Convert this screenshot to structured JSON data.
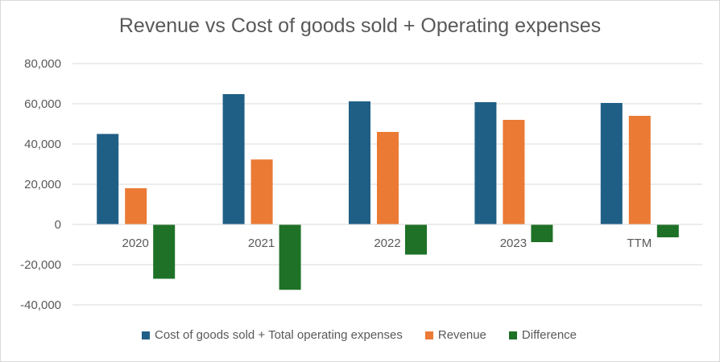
{
  "chart_data": {
    "type": "bar",
    "title": "Revenue vs Cost of goods sold + Operating expenses",
    "categories": [
      "2020",
      "2021",
      "2022",
      "2023",
      "TTM"
    ],
    "series": [
      {
        "name": "Cost of goods sold + Total operating expenses",
        "color": "#1f5f86",
        "values": [
          45000,
          64800,
          61200,
          60800,
          60400
        ]
      },
      {
        "name": "Revenue",
        "color": "#eb7a34",
        "values": [
          18000,
          32300,
          46000,
          52000,
          54000
        ]
      },
      {
        "name": "Difference",
        "color": "#1e7126",
        "values": [
          -27000,
          -32500,
          -15000,
          -8800,
          -6400
        ]
      }
    ],
    "ylim": [
      -40000,
      80000
    ],
    "yticks": [
      -40000,
      -20000,
      0,
      20000,
      40000,
      60000,
      80000
    ],
    "ytick_labels": [
      "-40,000",
      "-20,000",
      "0",
      "20,000",
      "40,000",
      "60,000",
      "80,000"
    ],
    "grid": true,
    "legend_position": "bottom"
  }
}
